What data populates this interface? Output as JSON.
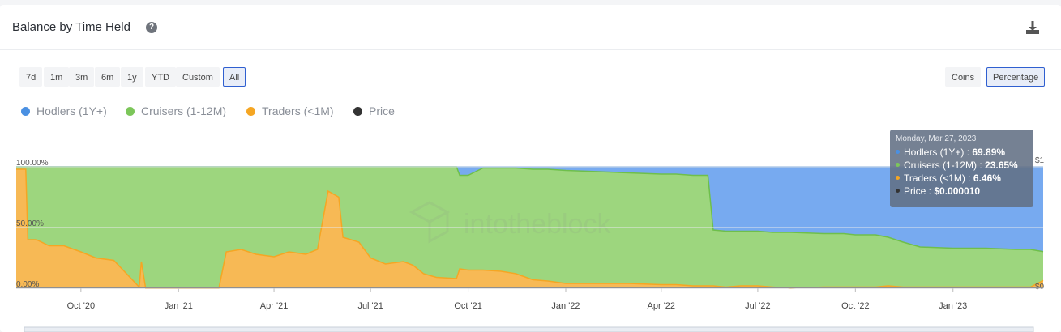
{
  "header": {
    "title": "Balance by Time Held",
    "help_icon": "question-circle-icon",
    "download_icon": "download-icon"
  },
  "ranges": [
    "7d",
    "1m",
    "3m",
    "6m",
    "1y",
    "YTD",
    "Custom",
    "All"
  ],
  "active_range": "All",
  "units": [
    "Coins",
    "Percentage"
  ],
  "active_unit": "Percentage",
  "legend": [
    {
      "label": "Hodlers (1Y+)",
      "color": "#4a90e2"
    },
    {
      "label": "Cruisers (1-12M)",
      "color": "#7cc65a"
    },
    {
      "label": "Traders (<1M)",
      "color": "#f5a623"
    },
    {
      "label": "Price",
      "color": "#333333"
    }
  ],
  "watermark": "intotheblock",
  "tooltip": {
    "date": "Monday, Mar 27, 2023",
    "rows": [
      {
        "label": "Hodlers (1Y+)",
        "value": "69.89%",
        "color": "#4a90e2"
      },
      {
        "label": "Cruisers (1-12M)",
        "value": "23.65%",
        "color": "#7cc65a"
      },
      {
        "label": "Traders (<1M)",
        "value": "6.46%",
        "color": "#f5a623"
      },
      {
        "label": "Price",
        "value": "$0.000010",
        "color": "#333333"
      }
    ]
  },
  "chart_data": {
    "type": "area",
    "stacked": true,
    "y_axis_labels": [
      "100.00%",
      "50.00%",
      "0.00%"
    ],
    "right_axis_labels": [
      "$1",
      "$0"
    ],
    "ylim": [
      0,
      100
    ],
    "x_ticks": [
      "Oct '20",
      "Jan '21",
      "Apr '21",
      "Jul '21",
      "Oct '21",
      "Jan '22",
      "Apr '22",
      "Jul '22",
      "Oct '22",
      "Jan '23"
    ],
    "x_dates": [
      "2020-08-01",
      "2020-08-10",
      "2020-08-12",
      "2020-08-20",
      "2020-09-01",
      "2020-09-15",
      "2020-10-01",
      "2020-10-15",
      "2020-11-01",
      "2020-11-25",
      "2020-11-27",
      "2020-12-01",
      "2020-12-15",
      "2021-01-01",
      "2021-01-20",
      "2021-02-08",
      "2021-02-15",
      "2021-03-01",
      "2021-03-15",
      "2021-04-01",
      "2021-04-15",
      "2021-05-01",
      "2021-05-12",
      "2021-05-22",
      "2021-06-01",
      "2021-06-05",
      "2021-06-20",
      "2021-07-01",
      "2021-07-15",
      "2021-08-01",
      "2021-08-10",
      "2021-08-20",
      "2021-09-01",
      "2021-09-20",
      "2021-09-23",
      "2021-10-01",
      "2021-10-15",
      "2021-11-01",
      "2021-11-15",
      "2021-12-01",
      "2021-12-15",
      "2022-01-01",
      "2022-02-01",
      "2022-03-01",
      "2022-04-01",
      "2022-04-15",
      "2022-05-01",
      "2022-05-15",
      "2022-05-20",
      "2022-06-01",
      "2022-06-15",
      "2022-07-01",
      "2022-07-15",
      "2022-08-01",
      "2022-09-01",
      "2022-09-20",
      "2022-10-01",
      "2022-10-20",
      "2022-11-01",
      "2022-11-15",
      "2022-12-01",
      "2023-01-01",
      "2023-02-01",
      "2023-03-01",
      "2023-03-15",
      "2023-03-27"
    ],
    "series": [
      {
        "name": "Hodlers (1Y+)",
        "values": [
          0,
          0,
          0,
          0,
          0,
          0,
          0,
          0,
          0,
          0,
          0,
          0,
          0,
          0,
          0,
          0,
          0,
          0,
          0,
          0,
          0,
          0,
          0,
          0,
          0,
          0,
          0,
          0,
          0,
          0,
          0,
          0,
          0,
          0,
          7,
          7,
          1,
          1,
          1,
          2,
          2,
          3,
          4,
          5,
          6,
          6,
          7,
          7,
          52,
          53,
          53,
          53,
          54,
          54,
          55,
          55,
          56,
          56,
          58,
          62,
          66,
          67,
          67,
          68,
          68,
          69.89
        ]
      },
      {
        "name": "Cruisers (1-12M)",
        "values": [
          2,
          2,
          60,
          60,
          65,
          65,
          70,
          75,
          77,
          99,
          78,
          100,
          100,
          100,
          100,
          100,
          70,
          68,
          72,
          74,
          70,
          72,
          68,
          20,
          25,
          58,
          62,
          75,
          80,
          78,
          81,
          88,
          91,
          92,
          77,
          78,
          84,
          85,
          87,
          91,
          92,
          93,
          92,
          91,
          91,
          91,
          91,
          91,
          46,
          46,
          45,
          45,
          45,
          46,
          44,
          44,
          43,
          43,
          40,
          37,
          33,
          32,
          32,
          31,
          31,
          23.65
        ]
      },
      {
        "name": "Traders (<1M)",
        "values": [
          98,
          98,
          40,
          40,
          35,
          35,
          30,
          25,
          23,
          1,
          22,
          0,
          0,
          0,
          0,
          0,
          30,
          32,
          28,
          26,
          30,
          28,
          32,
          80,
          75,
          42,
          38,
          25,
          20,
          22,
          19,
          12,
          9,
          8,
          16,
          15,
          15,
          14,
          12,
          7,
          6,
          4,
          4,
          4,
          3,
          3,
          2,
          2,
          2,
          1,
          2,
          2,
          1,
          0,
          1,
          1,
          1,
          1,
          2,
          1,
          1,
          1,
          1,
          1,
          1,
          6.46
        ]
      }
    ]
  }
}
